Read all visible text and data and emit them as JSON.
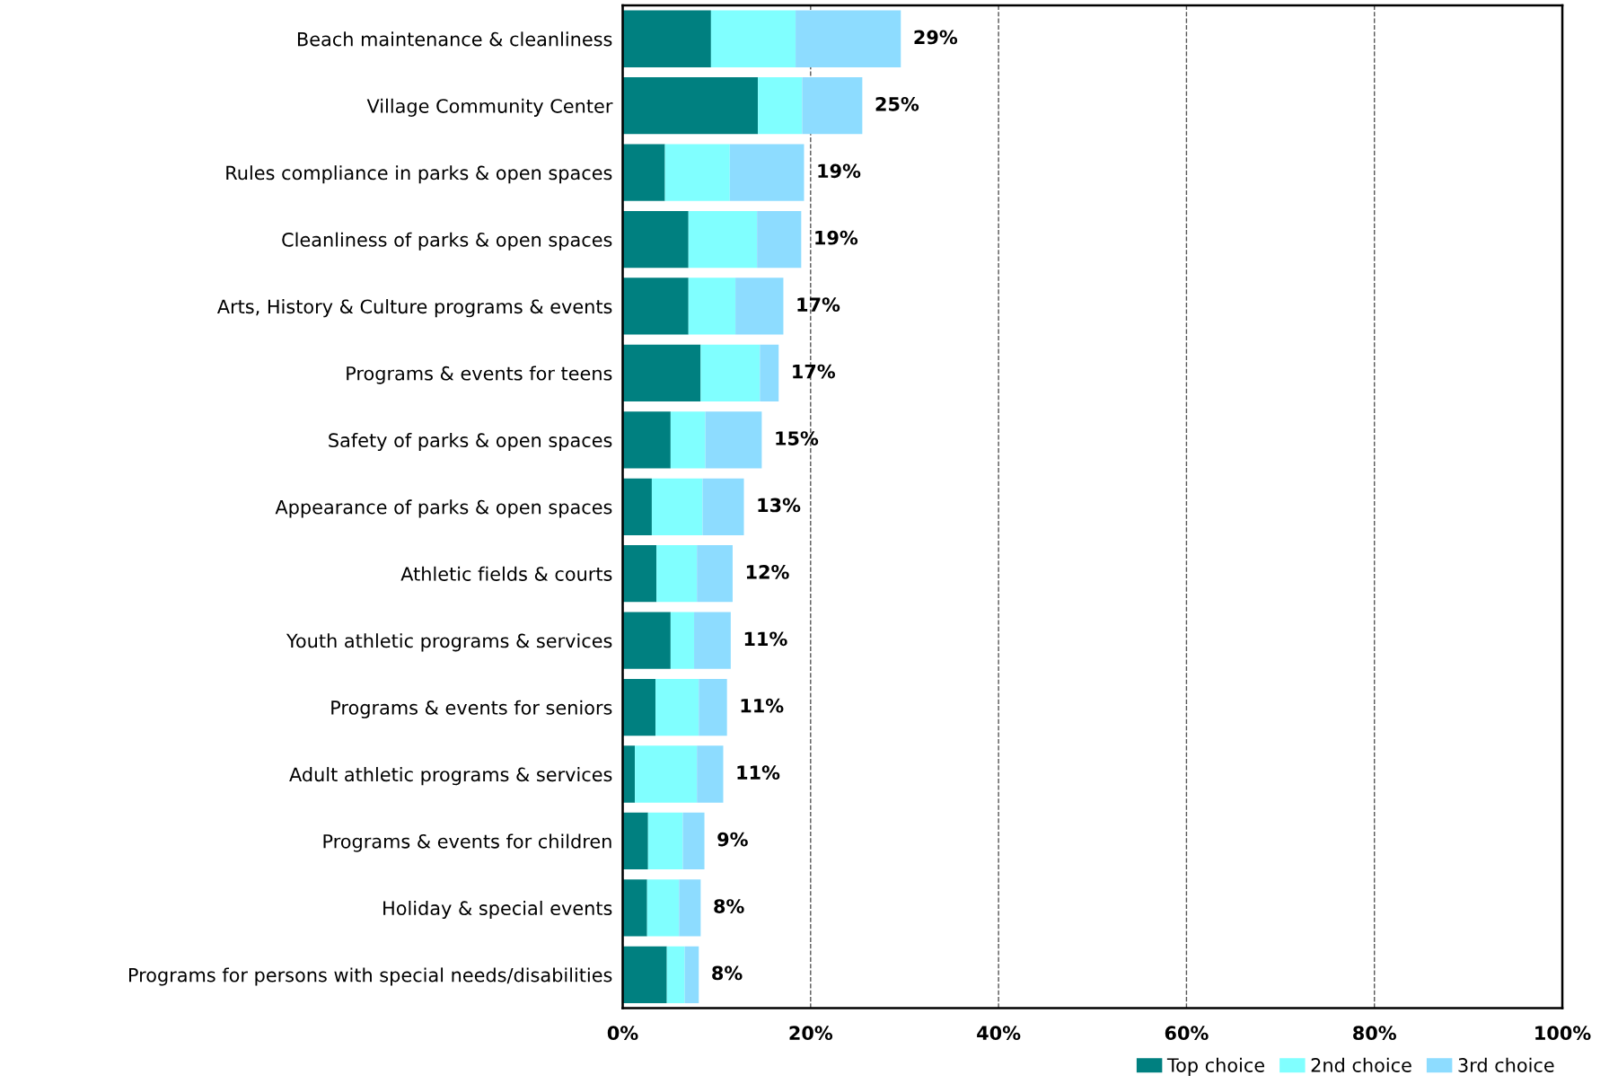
{
  "chart_data": {
    "type": "bar",
    "orientation": "horizontal",
    "stacked": true,
    "categories": [
      "Beach maintenance & cleanliness",
      "Village Community Center",
      "Rules compliance in parks & open spaces",
      "Cleanliness of parks & open spaces",
      "Arts, History & Culture programs & events",
      "Programs & events for teens",
      "Safety of parks & open spaces",
      "Appearance of parks & open spaces",
      "Athletic fields & courts",
      "Youth athletic programs & services",
      "Programs & events for seniors",
      "Adult athletic programs & services",
      "Programs & events for children",
      "Holiday & special events",
      "Programs for persons with special needs/disabilities"
    ],
    "series": [
      {
        "name": "Top choice",
        "color": "#008080",
        "values": [
          9.4,
          14.4,
          4.5,
          7.0,
          7.0,
          8.3,
          5.1,
          3.1,
          3.6,
          5.1,
          3.5,
          1.3,
          2.7,
          2.6,
          4.7
        ]
      },
      {
        "name": "2nd choice",
        "color": "#80ffff",
        "values": [
          9.0,
          4.7,
          6.9,
          7.3,
          5.0,
          6.3,
          3.7,
          5.4,
          4.3,
          2.5,
          4.6,
          6.6,
          3.7,
          3.4,
          1.9
        ]
      },
      {
        "name": "3rd choice",
        "color": "#8ddcff",
        "values": [
          11.2,
          6.4,
          7.9,
          4.7,
          5.1,
          2.0,
          6.0,
          4.4,
          3.8,
          3.9,
          3.0,
          2.8,
          2.3,
          2.3,
          1.5
        ]
      }
    ],
    "totals": [
      "29%",
      "25%",
      "19%",
      "19%",
      "17%",
      "17%",
      "15%",
      "13%",
      "12%",
      "11%",
      "11%",
      "11%",
      "9%",
      "8%",
      "8%"
    ],
    "xlim": [
      0,
      100
    ],
    "xticks": [
      {
        "value": 0,
        "label": "0%"
      },
      {
        "value": 20,
        "label": "20%"
      },
      {
        "value": 40,
        "label": "40%"
      },
      {
        "value": 60,
        "label": "60%"
      },
      {
        "value": 80,
        "label": "80%"
      },
      {
        "value": 100,
        "label": "100%"
      }
    ],
    "grid": "x",
    "legend": "bottom right"
  }
}
